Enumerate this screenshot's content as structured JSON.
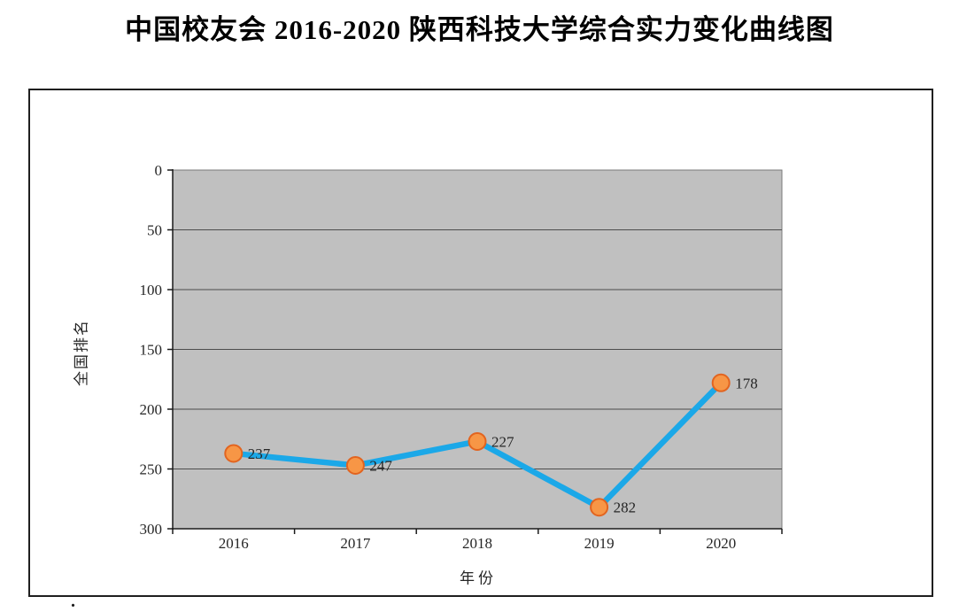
{
  "page": {
    "title": "中国校友会 2016-2020 陕西科技大学综合实力变化曲线图",
    "footnote_dot": "."
  },
  "chart_data": {
    "type": "line",
    "title": "中国校友会 2016-2020 陕西科技大学综合实力变化曲线图",
    "categories": [
      "2016",
      "2017",
      "2018",
      "2019",
      "2020"
    ],
    "series": [
      {
        "name": "全国排名",
        "values": [
          237,
          247,
          227,
          282,
          178
        ]
      }
    ],
    "data_labels": [
      "237",
      "247",
      "227",
      "282",
      "178"
    ],
    "xlabel": "年份",
    "ylabel": "全国排名",
    "y_ticks": [
      0,
      50,
      100,
      150,
      200,
      250,
      300
    ],
    "ylim": [
      0,
      300
    ],
    "y_axis_inverted": true,
    "grid": true,
    "legend_position": "none",
    "colors": {
      "line": "#1BA8E8",
      "marker_fill": "#F79646",
      "marker_stroke": "#E2641F",
      "plot_bg": "#C0C0C0",
      "plot_border": "#7A7A7A",
      "grid": "#4D4D4D",
      "axis": "#1A1A1A",
      "text": "#262626"
    }
  }
}
